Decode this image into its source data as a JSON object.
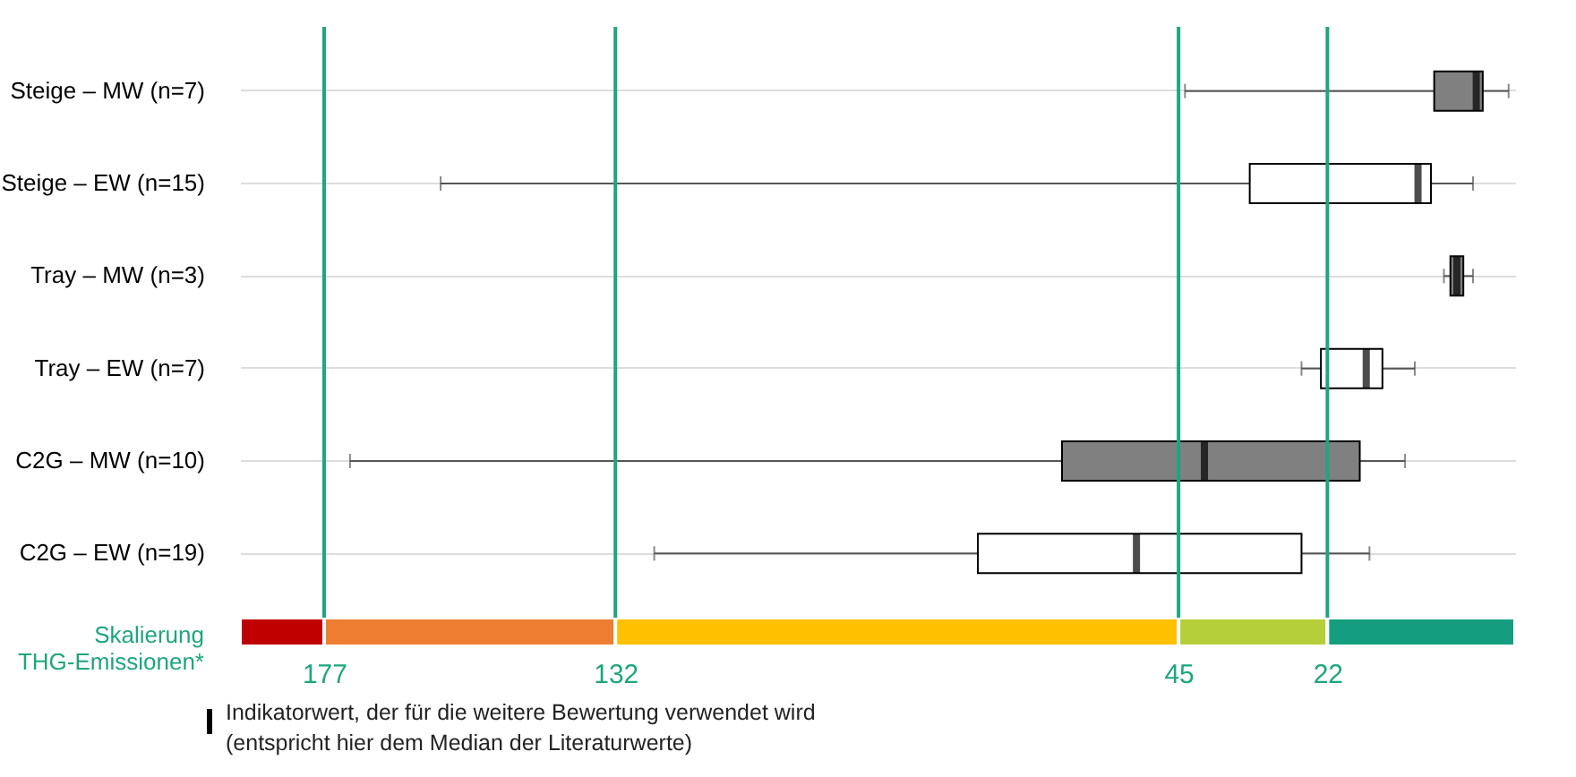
{
  "chart_data": {
    "type": "box",
    "orientation": "horizontal",
    "categories": [
      "Steige – MW (n=7)",
      "Steige – EW (n=15)",
      "Tray – MW (n=3)",
      "Tray – EW (n=7)",
      "C2G – MW (n=10)",
      "C2G – EW (n=19)"
    ],
    "boxes": [
      {
        "low": -6,
        "q1": -2,
        "median": -1,
        "q3": 5.5,
        "high": 44
      },
      {
        "low": -0.5,
        "q1": 6,
        "median": 8,
        "q3": 34,
        "high": 159
      },
      {
        "low": -0.5,
        "q1": 1,
        "median": 2,
        "q3": 3,
        "high": 4
      },
      {
        "low": 8.5,
        "q1": 13.5,
        "median": 16,
        "q3": 23,
        "high": 26
      },
      {
        "low": 10,
        "q1": 17,
        "median": 41,
        "q3": 63,
        "high": 173
      },
      {
        "low": 15.5,
        "q1": 26,
        "median": 51.5,
        "q3": 76,
        "high": 126
      }
    ],
    "colors": [
      "#808080",
      "#ffffff",
      "#808080",
      "#ffffff",
      "#808080",
      "#ffffff"
    ],
    "xlim": [
      190,
      -7
    ],
    "xticks": [
      177,
      132,
      45,
      22
    ],
    "grid": "y",
    "xlabel": "Skalierung\nTHG-Emissionen*",
    "ref_lines": [
      {
        "axis": "x",
        "value": 177,
        "color": "#1fa57f"
      },
      {
        "axis": "x",
        "value": 132,
        "color": "#1fa57f"
      },
      {
        "axis": "x",
        "value": 45,
        "color": "#1fa57f"
      },
      {
        "axis": "x",
        "value": 22,
        "color": "#1fa57f"
      }
    ],
    "annotations": [
      "Indikatorwert, der für die weitere Bewertung verwendet wird\n(entspricht hier dem Median der Literaturwerte)"
    ]
  }
}
